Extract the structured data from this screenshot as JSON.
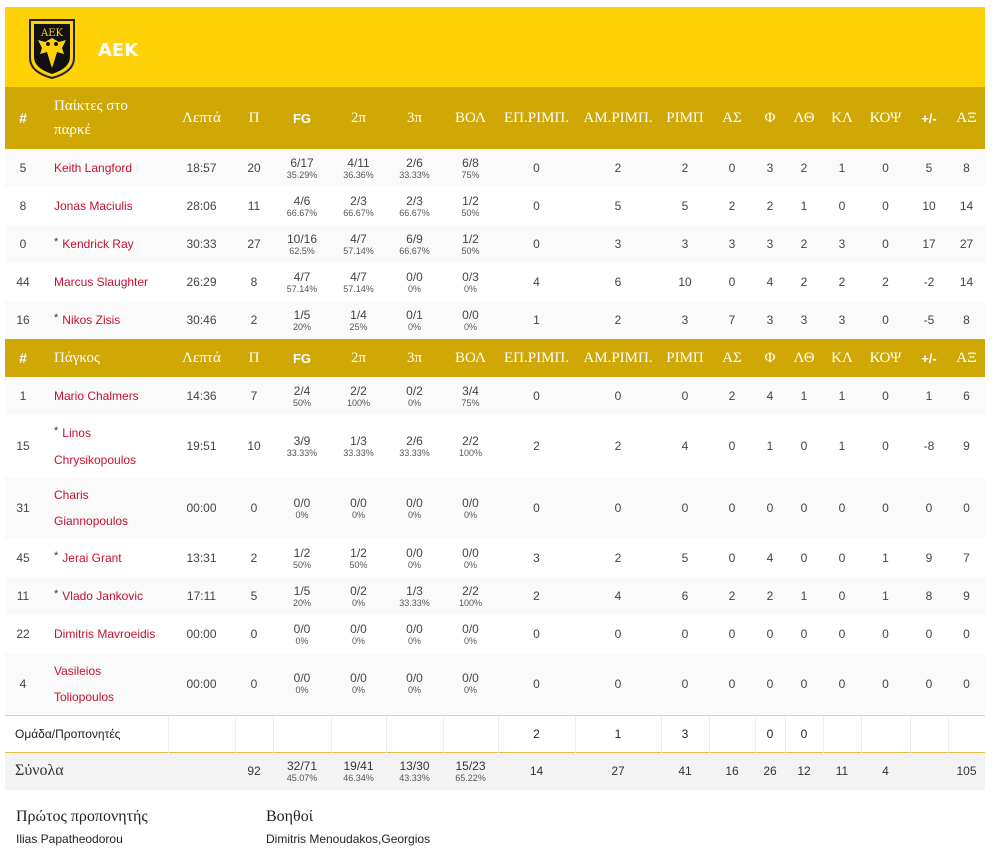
{
  "team": {
    "name": "AEK",
    "logo_letters": "ΑΕΚ",
    "colors": {
      "header": "#ffd207",
      "table_header": "#cfa805",
      "player_link": "#c8102e"
    }
  },
  "starters_header": [
    "#",
    "Παίκτες στο παρκέ",
    "Λεπτά",
    "Π",
    "FG",
    "2π",
    "3π",
    "ΒΟΛ",
    "ΕΠ.ΡΙΜΠ.",
    "ΑΜ.ΡΙΜΠ.",
    "ΡΙΜΠ",
    "ΑΣ",
    "Φ",
    "ΛΘ",
    "ΚΛ",
    "ΚΟΨ",
    "+/-",
    "ΑΞ"
  ],
  "bench_header": [
    "#",
    "Πάγκος",
    "Λεπτά",
    "Π",
    "FG",
    "2π",
    "3π",
    "ΒΟΛ",
    "ΕΠ.ΡΙΜΠ.",
    "ΑΜ.ΡΙΜΠ.",
    "ΡΙΜΠ",
    "ΑΣ",
    "Φ",
    "ΛΘ",
    "ΚΛ",
    "ΚΟΨ",
    "+/-",
    "ΑΞ"
  ],
  "starters": [
    {
      "num": "5",
      "star": false,
      "name": [
        "Keith Langford"
      ],
      "min": "18:57",
      "pts": "20",
      "fg": [
        "6/17",
        "35.29%"
      ],
      "p2": [
        "4/11",
        "36.36%"
      ],
      "p3": [
        "2/6",
        "33.33%"
      ],
      "ft": [
        "6/8",
        "75%"
      ],
      "oreb": "0",
      "dreb": "2",
      "reb": "2",
      "ast": "0",
      "pf": "3",
      "to": "2",
      "stl": "1",
      "blk": "0",
      "pm": "5",
      "eff": "8"
    },
    {
      "num": "8",
      "star": false,
      "name": [
        "Jonas Maciulis"
      ],
      "min": "28:06",
      "pts": "11",
      "fg": [
        "4/6",
        "66.67%"
      ],
      "p2": [
        "2/3",
        "66.67%"
      ],
      "p3": [
        "2/3",
        "66.67%"
      ],
      "ft": [
        "1/2",
        "50%"
      ],
      "oreb": "0",
      "dreb": "5",
      "reb": "5",
      "ast": "2",
      "pf": "2",
      "to": "1",
      "stl": "0",
      "blk": "0",
      "pm": "10",
      "eff": "14"
    },
    {
      "num": "0",
      "star": true,
      "name": [
        "Kendrick Ray"
      ],
      "min": "30:33",
      "pts": "27",
      "fg": [
        "10/16",
        "62.5%"
      ],
      "p2": [
        "4/7",
        "57.14%"
      ],
      "p3": [
        "6/9",
        "66.67%"
      ],
      "ft": [
        "1/2",
        "50%"
      ],
      "oreb": "0",
      "dreb": "3",
      "reb": "3",
      "ast": "3",
      "pf": "3",
      "to": "2",
      "stl": "3",
      "blk": "0",
      "pm": "17",
      "eff": "27"
    },
    {
      "num": "44",
      "star": false,
      "name": [
        "Marcus Slaughter"
      ],
      "min": "26:29",
      "pts": "8",
      "fg": [
        "4/7",
        "57.14%"
      ],
      "p2": [
        "4/7",
        "57.14%"
      ],
      "p3": [
        "0/0",
        "0%"
      ],
      "ft": [
        "0/3",
        "0%"
      ],
      "oreb": "4",
      "dreb": "6",
      "reb": "10",
      "ast": "0",
      "pf": "4",
      "to": "2",
      "stl": "2",
      "blk": "2",
      "pm": "-2",
      "eff": "14"
    },
    {
      "num": "16",
      "star": true,
      "name": [
        "Nikos Zisis"
      ],
      "min": "30:46",
      "pts": "2",
      "fg": [
        "1/5",
        "20%"
      ],
      "p2": [
        "1/4",
        "25%"
      ],
      "p3": [
        "0/1",
        "0%"
      ],
      "ft": [
        "0/0",
        "0%"
      ],
      "oreb": "1",
      "dreb": "2",
      "reb": "3",
      "ast": "7",
      "pf": "3",
      "to": "3",
      "stl": "3",
      "blk": "0",
      "pm": "-5",
      "eff": "8"
    }
  ],
  "bench": [
    {
      "num": "1",
      "star": false,
      "name": [
        "Mario Chalmers"
      ],
      "min": "14:36",
      "pts": "7",
      "fg": [
        "2/4",
        "50%"
      ],
      "p2": [
        "2/2",
        "100%"
      ],
      "p3": [
        "0/2",
        "0%"
      ],
      "ft": [
        "3/4",
        "75%"
      ],
      "oreb": "0",
      "dreb": "0",
      "reb": "0",
      "ast": "2",
      "pf": "4",
      "to": "1",
      "stl": "1",
      "blk": "0",
      "pm": "1",
      "eff": "6"
    },
    {
      "num": "15",
      "star": true,
      "name": [
        "Linos",
        "Chrysikopoulos"
      ],
      "min": "19:51",
      "pts": "10",
      "fg": [
        "3/9",
        "33.33%"
      ],
      "p2": [
        "1/3",
        "33.33%"
      ],
      "p3": [
        "2/6",
        "33.33%"
      ],
      "ft": [
        "2/2",
        "100%"
      ],
      "oreb": "2",
      "dreb": "2",
      "reb": "4",
      "ast": "0",
      "pf": "1",
      "to": "0",
      "stl": "1",
      "blk": "0",
      "pm": "-8",
      "eff": "9"
    },
    {
      "num": "31",
      "star": false,
      "name": [
        "Charis",
        "Giannopoulos"
      ],
      "min": "00:00",
      "pts": "0",
      "fg": [
        "0/0",
        "0%"
      ],
      "p2": [
        "0/0",
        "0%"
      ],
      "p3": [
        "0/0",
        "0%"
      ],
      "ft": [
        "0/0",
        "0%"
      ],
      "oreb": "0",
      "dreb": "0",
      "reb": "0",
      "ast": "0",
      "pf": "0",
      "to": "0",
      "stl": "0",
      "blk": "0",
      "pm": "0",
      "eff": "0"
    },
    {
      "num": "45",
      "star": true,
      "name": [
        "Jerai Grant"
      ],
      "min": "13:31",
      "pts": "2",
      "fg": [
        "1/2",
        "50%"
      ],
      "p2": [
        "1/2",
        "50%"
      ],
      "p3": [
        "0/0",
        "0%"
      ],
      "ft": [
        "0/0",
        "0%"
      ],
      "oreb": "3",
      "dreb": "2",
      "reb": "5",
      "ast": "0",
      "pf": "4",
      "to": "0",
      "stl": "0",
      "blk": "1",
      "pm": "9",
      "eff": "7"
    },
    {
      "num": "11",
      "star": true,
      "name": [
        "Vlado Jankovic"
      ],
      "min": "17:11",
      "pts": "5",
      "fg": [
        "1/5",
        "20%"
      ],
      "p2": [
        "0/2",
        "0%"
      ],
      "p3": [
        "1/3",
        "33.33%"
      ],
      "ft": [
        "2/2",
        "100%"
      ],
      "oreb": "2",
      "dreb": "4",
      "reb": "6",
      "ast": "2",
      "pf": "2",
      "to": "1",
      "stl": "0",
      "blk": "1",
      "pm": "8",
      "eff": "9"
    },
    {
      "num": "22",
      "star": false,
      "name": [
        "Dimitris Mavroeidis"
      ],
      "min": "00:00",
      "pts": "0",
      "fg": [
        "0/0",
        "0%"
      ],
      "p2": [
        "0/0",
        "0%"
      ],
      "p3": [
        "0/0",
        "0%"
      ],
      "ft": [
        "0/0",
        "0%"
      ],
      "oreb": "0",
      "dreb": "0",
      "reb": "0",
      "ast": "0",
      "pf": "0",
      "to": "0",
      "stl": "0",
      "blk": "0",
      "pm": "0",
      "eff": "0"
    },
    {
      "num": "4",
      "star": false,
      "name": [
        "Vasileios",
        "Toliopoulos"
      ],
      "min": "00:00",
      "pts": "0",
      "fg": [
        "0/0",
        "0%"
      ],
      "p2": [
        "0/0",
        "0%"
      ],
      "p3": [
        "0/0",
        "0%"
      ],
      "ft": [
        "0/0",
        "0%"
      ],
      "oreb": "0",
      "dreb": "0",
      "reb": "0",
      "ast": "0",
      "pf": "0",
      "to": "0",
      "stl": "0",
      "blk": "0",
      "pm": "0",
      "eff": "0"
    }
  ],
  "team_coaches": {
    "label": "Ομάδα/Προπονητές",
    "oreb": "2",
    "dreb": "1",
    "reb": "3",
    "ast": "",
    "pf": "0",
    "to": "0"
  },
  "totals": {
    "label": "Σύνολα",
    "pts": "92",
    "fg": [
      "32/71",
      "45.07%"
    ],
    "p2": [
      "19/41",
      "46.34%"
    ],
    "p3": [
      "13/30",
      "43.33%"
    ],
    "ft": [
      "15/23",
      "65.22%"
    ],
    "oreb": "14",
    "dreb": "27",
    "reb": "41",
    "ast": "16",
    "pf": "26",
    "to": "12",
    "stl": "11",
    "blk": "4",
    "pm": "",
    "eff": "105"
  },
  "staff": {
    "head_coach_title": "Πρώτος προπονητής",
    "head_coach": "Ilias Papatheodorou",
    "assistants_title": "Βοηθοί",
    "assistants": "Dimitris Menoudakos,Georgios"
  }
}
